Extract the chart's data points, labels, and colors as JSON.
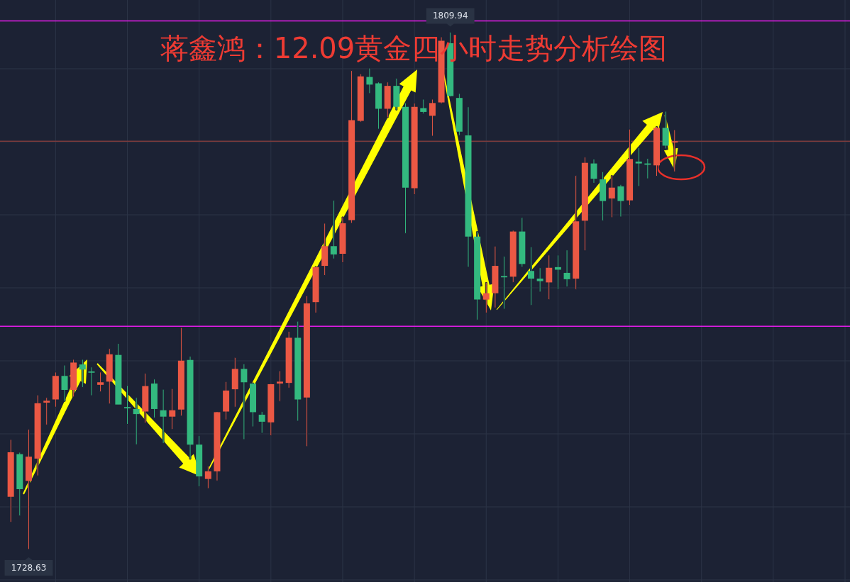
{
  "chart_data": {
    "type": "candlestick",
    "title": "蒋鑫鸿：12.09黄金四小时走势分析绘图",
    "categories": [
      null,
      null,
      null,
      null,
      null,
      null,
      null,
      null,
      null,
      null,
      null,
      null,
      null,
      null,
      null,
      null,
      null,
      null,
      null,
      null,
      null,
      null,
      null,
      null,
      null,
      null,
      null,
      null,
      null,
      null,
      null,
      null,
      null,
      null,
      null,
      null,
      null,
      null,
      null,
      null,
      null,
      null,
      null,
      null,
      null,
      null,
      null,
      null,
      null,
      null,
      null,
      null,
      null,
      null,
      null,
      null,
      null,
      null,
      null,
      null,
      null,
      null,
      null,
      null,
      null,
      null,
      null,
      null,
      null,
      null,
      null,
      null,
      null,
      null,
      null
    ],
    "ohlc": [
      [
        1736.9,
        1745.9,
        1732.9,
        1743.9
      ],
      [
        1743.6,
        1743.9,
        1733.9,
        1738.1
      ],
      [
        1739.4,
        1747.5,
        1728.63,
        1743.2
      ],
      [
        1742.9,
        1752.9,
        1740.2,
        1751.6
      ],
      [
        1751.7,
        1752.5,
        1748.2,
        1752.0
      ],
      [
        1752.2,
        1756.5,
        1751.0,
        1755.9
      ],
      [
        1755.9,
        1757.6,
        1751.9,
        1753.7
      ],
      [
        1753.7,
        1758.5,
        1752.6,
        1758.0
      ],
      [
        1757.7,
        1758.5,
        1754.1,
        1756.9
      ],
      [
        1756.6,
        1757.3,
        1752.8,
        1756.4
      ],
      [
        1754.5,
        1756.5,
        1753.4,
        1754.9
      ],
      [
        1755.0,
        1760.2,
        1751.5,
        1759.3
      ],
      [
        1759.2,
        1761.0,
        1751.4,
        1751.4
      ],
      [
        1751.0,
        1754.4,
        1748.3,
        1750.8
      ],
      [
        1750.7,
        1752.5,
        1745.1,
        1749.9
      ],
      [
        1750.3,
        1756.3,
        1748.5,
        1754.3
      ],
      [
        1754.7,
        1755.4,
        1749.3,
        1750.7
      ],
      [
        1750.5,
        1753.8,
        1745.3,
        1749.5
      ],
      [
        1749.5,
        1753.9,
        1747.5,
        1750.5
      ],
      [
        1750.6,
        1763.5,
        1749.6,
        1758.3
      ],
      [
        1758.4,
        1759.0,
        1742.8,
        1745.1
      ],
      [
        1745.1,
        1746.5,
        1738.5,
        1740.1
      ],
      [
        1739.7,
        1741.7,
        1738.2,
        1740.9
      ],
      [
        1740.9,
        1750.3,
        1739.4,
        1750.2
      ],
      [
        1750.3,
        1755.0,
        1749.0,
        1753.6
      ],
      [
        1753.8,
        1758.8,
        1751.0,
        1757.0
      ],
      [
        1757.0,
        1757.8,
        1745.9,
        1754.9
      ],
      [
        1754.7,
        1754.8,
        1747.9,
        1750.2
      ],
      [
        1749.8,
        1750.3,
        1746.9,
        1748.7
      ],
      [
        1748.6,
        1754.7,
        1746.5,
        1754.6
      ],
      [
        1754.7,
        1756.7,
        1751.9,
        1755.0
      ],
      [
        1754.8,
        1762.9,
        1754.0,
        1761.9
      ],
      [
        1761.9,
        1764.5,
        1748.8,
        1752.2
      ],
      [
        1752.5,
        1768.5,
        1744.8,
        1767.3
      ],
      [
        1767.5,
        1773.1,
        1765.8,
        1773.0
      ],
      [
        1773.2,
        1779.9,
        1771.7,
        1776.3
      ],
      [
        1776.3,
        1783.5,
        1774.3,
        1775.0
      ],
      [
        1775.1,
        1780.9,
        1773.7,
        1779.9
      ],
      [
        1780.4,
        1803.9,
        1779.9,
        1796.1
      ],
      [
        1796.0,
        1803.4,
        1795.8,
        1803.0
      ],
      [
        1802.9,
        1804.3,
        1800.3,
        1801.7
      ],
      [
        1801.9,
        1802.1,
        1794.7,
        1797.9
      ],
      [
        1797.9,
        1802.1,
        1796.5,
        1801.5
      ],
      [
        1801.5,
        1802.7,
        1797.7,
        1798.2
      ],
      [
        1798.2,
        1798.8,
        1778.3,
        1785.5
      ],
      [
        1785.4,
        1798.8,
        1784.4,
        1798.2
      ],
      [
        1798.0,
        1799.4,
        1797.1,
        1797.4
      ],
      [
        1796.8,
        1799.4,
        1793.6,
        1798.8
      ],
      [
        1798.9,
        1809.2,
        1798.7,
        1808.6
      ],
      [
        1808.2,
        1809.94,
        1799.8,
        1799.9
      ],
      [
        1799.6,
        1800.3,
        1793.7,
        1794.3
      ],
      [
        1793.7,
        1798.2,
        1773.0,
        1777.8
      ],
      [
        1777.8,
        1778.6,
        1764.7,
        1767.9
      ],
      [
        1767.9,
        1770.6,
        1765.8,
        1768.9
      ],
      [
        1768.9,
        1776.3,
        1766.6,
        1773.2
      ],
      [
        1771.6,
        1774.7,
        1766.4,
        1771.4
      ],
      [
        1771.5,
        1778.8,
        1770.6,
        1778.6
      ],
      [
        1778.6,
        1780.8,
        1773.0,
        1773.5
      ],
      [
        1772.4,
        1776.2,
        1767.0,
        1771.2
      ],
      [
        1771.2,
        1772.9,
        1769.1,
        1770.8
      ],
      [
        1770.6,
        1774.9,
        1767.9,
        1772.9
      ],
      [
        1773.0,
        1774.9,
        1769.5,
        1772.6
      ],
      [
        1772.1,
        1775.7,
        1769.9,
        1771.1
      ],
      [
        1771.2,
        1787.4,
        1769.5,
        1780.2
      ],
      [
        1780.3,
        1790.3,
        1775.6,
        1789.4
      ],
      [
        1789.3,
        1790.0,
        1786.2,
        1786.9
      ],
      [
        1786.8,
        1788.0,
        1780.3,
        1783.4
      ],
      [
        1783.8,
        1787.4,
        1780.8,
        1785.5
      ],
      [
        1785.7,
        1786.0,
        1780.9,
        1783.4
      ],
      [
        1783.5,
        1794.7,
        1782.7,
        1790.0
      ],
      [
        1789.6,
        1791.8,
        1785.7,
        1789.3
      ],
      [
        1789.3,
        1790.1,
        1786.9,
        1789.1
      ],
      [
        1789.0,
        1795.1,
        1787.3,
        1794.9
      ],
      [
        1794.9,
        1797.5,
        1791.6,
        1792.1
      ],
      [
        1792.6,
        1794.6,
        1788.0,
        1792.8
      ]
    ],
    "colors": [
      "#eb5844",
      "#33b97f",
      "#eb5844",
      "#eb5844",
      "#eb5844",
      "#eb5844",
      "#33b97f",
      "#eb5844",
      "#33b97f",
      "#33b97f",
      "#eb5844",
      "#eb5844",
      "#33b97f",
      "#33b97f",
      "#33b97f",
      "#eb5844",
      "#33b97f",
      "#33b97f",
      "#eb5844",
      "#eb5844",
      "#33b97f",
      "#33b97f",
      "#eb5844",
      "#eb5844",
      "#eb5844",
      "#eb5844",
      "#33b97f",
      "#33b97f",
      "#33b97f",
      "#eb5844",
      "#eb5844",
      "#eb5844",
      "#33b97f",
      "#eb5844",
      "#eb5844",
      "#eb5844",
      "#33b97f",
      "#eb5844",
      "#eb5844",
      "#eb5844",
      "#33b97f",
      "#33b97f",
      "#eb5844",
      "#33b97f",
      "#33b97f",
      "#eb5844",
      "#33b97f",
      "#eb5844",
      "#eb5844",
      "#33b97f",
      "#33b97f",
      "#33b97f",
      "#33b97f",
      "#eb5844",
      "#eb5844",
      "#33b97f",
      "#eb5844",
      "#33b97f",
      "#33b97f",
      "#33b97f",
      "#eb5844",
      "#33b97f",
      "#33b97f",
      "#eb5844",
      "#eb5844",
      "#33b97f",
      "#33b97f",
      "#eb5844",
      "#33b97f",
      "#eb5844",
      "#33b97f",
      "#33b97f",
      "#eb5844",
      "#33b97f",
      "#eb5844"
    ],
    "ylim": [
      1723.5,
      1815.0
    ],
    "grid": true,
    "tick_labels": false,
    "ref_lines": [
      {
        "axis": "y",
        "value": 1811.7,
        "color": "#e31ce8"
      },
      {
        "axis": "y",
        "value": 1763.7,
        "color": "#e31ce8"
      },
      {
        "axis": "y",
        "value": 1792.8,
        "color": "#7a3a3c"
      }
    ],
    "annotations": [
      {
        "text": "1809.94",
        "y": 1809.94
      },
      {
        "text": "1728.63",
        "y": 1728.63
      }
    ]
  }
}
